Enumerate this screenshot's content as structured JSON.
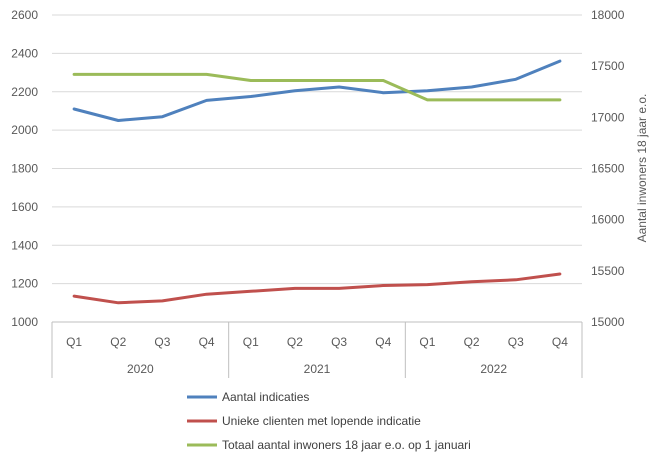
{
  "chart_data": {
    "type": "line",
    "years": [
      "2020",
      "2021",
      "2022"
    ],
    "categories": [
      "Q1",
      "Q2",
      "Q3",
      "Q4",
      "Q1",
      "Q2",
      "Q3",
      "Q4",
      "Q1",
      "Q2",
      "Q3",
      "Q4"
    ],
    "y_left": {
      "min": 1000,
      "max": 2600,
      "step": 200,
      "label": ""
    },
    "y_right": {
      "min": 15000,
      "max": 18000,
      "step": 500,
      "label": "Aantal inwoners 18 jaar e.o."
    },
    "grid": true,
    "legend_position": "bottom",
    "series": [
      {
        "name": "Aantal indicaties",
        "axis": "left",
        "color": "#4f81bd",
        "values": [
          2110,
          2050,
          2070,
          2155,
          2175,
          2205,
          2225,
          2195,
          2205,
          2225,
          2265,
          2360
        ]
      },
      {
        "name": "Unieke clienten met lopende indicatie",
        "axis": "left",
        "color": "#c0504d",
        "values": [
          1135,
          1100,
          1110,
          1145,
          1160,
          1175,
          1175,
          1190,
          1195,
          1210,
          1220,
          1250
        ]
      },
      {
        "name": "Totaal aantal inwoners 18 jaar e.o. op 1 januari",
        "axis": "right",
        "color": "#9bbb59",
        "values": [
          17420,
          17420,
          17420,
          17420,
          17360,
          17360,
          17360,
          17360,
          17170,
          17170,
          17170,
          17170
        ]
      }
    ]
  }
}
